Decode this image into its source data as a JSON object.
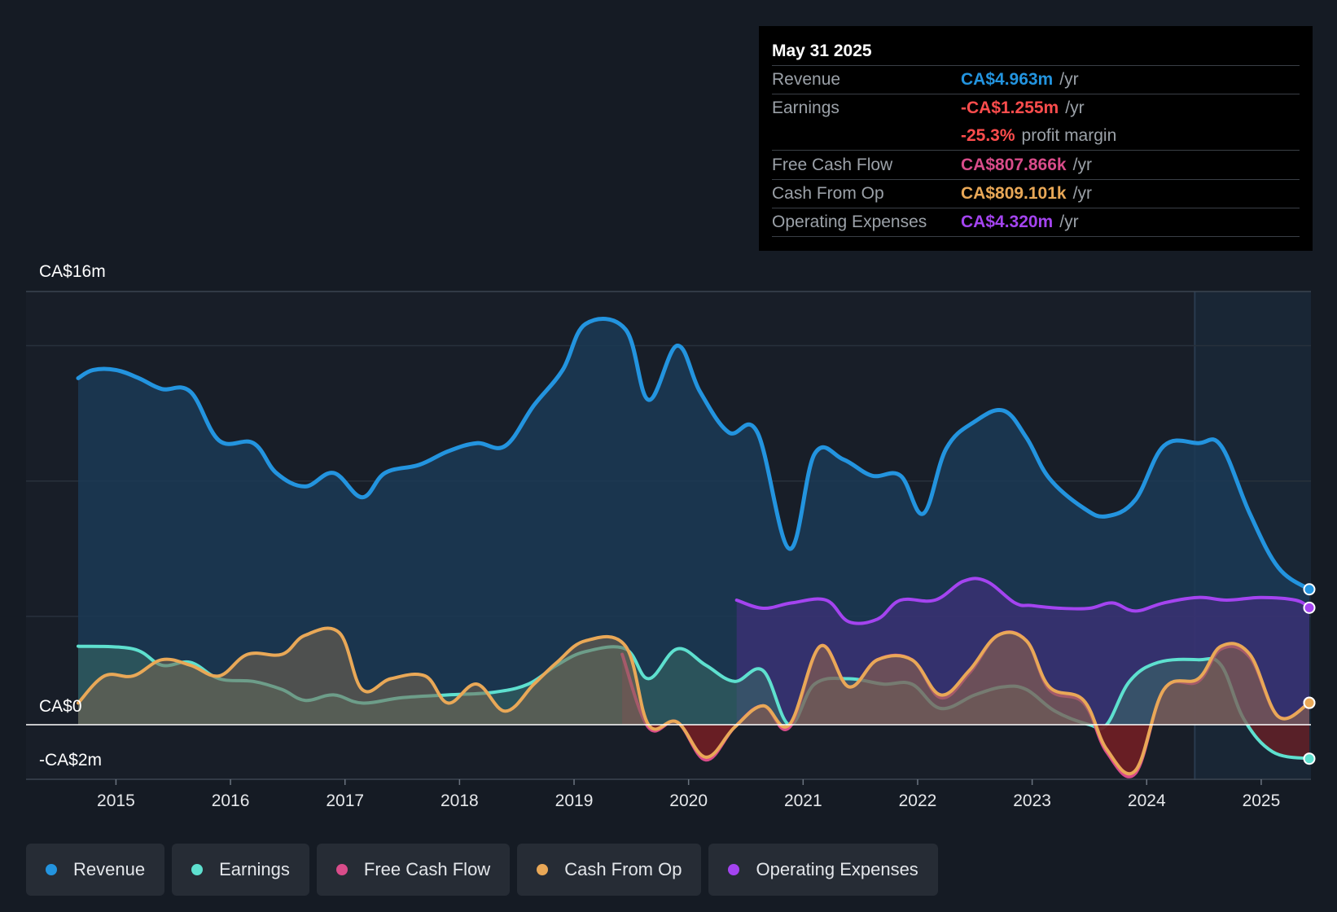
{
  "tooltip": {
    "date": "May 31 2025",
    "revenue": {
      "label": "Revenue",
      "value": "CA$4.963m",
      "unit": "/yr"
    },
    "earnings": {
      "label": "Earnings",
      "value": "-CA$1.255m",
      "unit": "/yr"
    },
    "margin": {
      "value": "-25.3%",
      "unit": "profit margin"
    },
    "fcf": {
      "label": "Free Cash Flow",
      "value": "CA$807.866k",
      "unit": "/yr"
    },
    "cfo": {
      "label": "Cash From Op",
      "value": "CA$809.101k",
      "unit": "/yr"
    },
    "opex": {
      "label": "Operating Expenses",
      "value": "CA$4.320m",
      "unit": "/yr"
    }
  },
  "colors": {
    "revenue": "#2394df",
    "earnings": "#5ee0cf",
    "fcf": "#d94c8a",
    "cfo": "#e9a857",
    "opex": "#a444f0",
    "negative": "#ff4d4d"
  },
  "legend": [
    "Revenue",
    "Earnings",
    "Free Cash Flow",
    "Cash From Op",
    "Operating Expenses"
  ],
  "chart_data": {
    "type": "area",
    "unit": "CA$ millions",
    "ylim": [
      -2,
      16
    ],
    "y_tick_labels": [
      "CA$16m",
      "CA$0",
      "-CA$2m"
    ],
    "x_tick_labels": [
      "2015",
      "2016",
      "2017",
      "2018",
      "2019",
      "2020",
      "2021",
      "2022",
      "2023",
      "2024",
      "2025"
    ],
    "x_range": [
      2014.67,
      2025.42
    ],
    "forecast_start": 2024.42,
    "series": [
      {
        "name": "Revenue",
        "key": "revenue",
        "x": [
          2014.67,
          2014.8,
          2015.0,
          2015.2,
          2015.4,
          2015.65,
          2015.9,
          2016.2,
          2016.4,
          2016.65,
          2016.9,
          2017.15,
          2017.35,
          2017.65,
          2017.9,
          2018.15,
          2018.4,
          2018.65,
          2018.9,
          2019.1,
          2019.45,
          2019.65,
          2019.9,
          2020.1,
          2020.35,
          2020.6,
          2020.88,
          2021.1,
          2021.35,
          2021.6,
          2021.85,
          2022.05,
          2022.25,
          2022.5,
          2022.75,
          2022.95,
          2023.15,
          2023.45,
          2023.65,
          2023.9,
          2024.15,
          2024.45,
          2024.65,
          2024.9,
          2025.15,
          2025.42
        ],
        "values": [
          12.8,
          13.1,
          13.1,
          12.8,
          12.4,
          12.3,
          10.5,
          10.4,
          9.3,
          8.8,
          9.3,
          8.4,
          9.3,
          9.6,
          10.1,
          10.4,
          10.3,
          11.8,
          13.1,
          14.8,
          14.6,
          12.0,
          14.0,
          12.3,
          10.8,
          10.8,
          6.5,
          10.0,
          9.8,
          9.2,
          9.2,
          7.8,
          10.2,
          11.2,
          11.6,
          10.6,
          9.1,
          8.0,
          7.7,
          8.3,
          10.3,
          10.4,
          10.3,
          7.8,
          5.8,
          5.0
        ]
      },
      {
        "name": "Earnings",
        "key": "earnings",
        "x": [
          2014.67,
          2015.15,
          2015.4,
          2015.65,
          2015.9,
          2016.2,
          2016.45,
          2016.65,
          2016.9,
          2017.15,
          2017.5,
          2017.9,
          2018.3,
          2018.6,
          2018.85,
          2019.1,
          2019.45,
          2019.65,
          2019.9,
          2020.15,
          2020.4,
          2020.65,
          2020.88,
          2021.1,
          2021.4,
          2021.7,
          2021.95,
          2022.2,
          2022.5,
          2022.75,
          2022.95,
          2023.2,
          2023.5,
          2023.65,
          2023.85,
          2024.1,
          2024.45,
          2024.65,
          2024.85,
          2025.1,
          2025.42
        ],
        "values": [
          2.9,
          2.8,
          2.2,
          2.3,
          1.7,
          1.6,
          1.3,
          0.9,
          1.1,
          0.8,
          1.0,
          1.1,
          1.2,
          1.5,
          2.2,
          2.7,
          2.8,
          1.7,
          2.8,
          2.2,
          1.6,
          2.0,
          0.0,
          1.5,
          1.7,
          1.5,
          1.5,
          0.6,
          1.1,
          1.4,
          1.3,
          0.5,
          0.0,
          0.0,
          1.6,
          2.3,
          2.4,
          2.2,
          0.2,
          -1.0,
          -1.255
        ]
      },
      {
        "name": "Free Cash Flow",
        "key": "fcf",
        "x": [
          2019.42,
          2019.65,
          2019.9,
          2020.15,
          2020.4,
          2020.65,
          2020.88,
          2021.15,
          2021.4,
          2021.65,
          2021.95,
          2022.2,
          2022.45,
          2022.7,
          2022.95,
          2023.15,
          2023.45,
          2023.65,
          2023.9,
          2024.15,
          2024.45,
          2024.65,
          2024.9,
          2025.15,
          2025.42
        ],
        "values": [
          2.6,
          -0.1,
          0.1,
          -1.3,
          -0.1,
          0.7,
          -0.1,
          2.9,
          1.4,
          2.4,
          2.4,
          1.0,
          1.9,
          3.3,
          3.1,
          1.3,
          0.8,
          -1.0,
          -1.8,
          1.3,
          1.6,
          2.8,
          2.5,
          0.3,
          0.807866
        ]
      },
      {
        "name": "Cash From Op",
        "key": "cfo",
        "x": [
          2014.67,
          2014.9,
          2015.15,
          2015.4,
          2015.65,
          2015.9,
          2016.15,
          2016.45,
          2016.65,
          2016.95,
          2017.15,
          2017.4,
          2017.7,
          2017.9,
          2018.15,
          2018.4,
          2018.65,
          2018.85,
          2019.1,
          2019.45,
          2019.65,
          2019.9,
          2020.15,
          2020.4,
          2020.65,
          2020.88,
          2021.15,
          2021.4,
          2021.65,
          2021.95,
          2022.2,
          2022.45,
          2022.7,
          2022.95,
          2023.15,
          2023.45,
          2023.65,
          2023.9,
          2024.15,
          2024.45,
          2024.65,
          2024.9,
          2025.15,
          2025.42
        ],
        "values": [
          0.8,
          1.8,
          1.8,
          2.4,
          2.2,
          1.8,
          2.6,
          2.6,
          3.3,
          3.4,
          1.3,
          1.7,
          1.8,
          0.8,
          1.5,
          0.5,
          1.5,
          2.3,
          3.1,
          2.9,
          0.0,
          0.1,
          -1.2,
          -0.1,
          0.7,
          0.0,
          2.9,
          1.4,
          2.4,
          2.4,
          1.1,
          2.0,
          3.3,
          3.1,
          1.4,
          0.9,
          -0.9,
          -1.7,
          1.3,
          1.7,
          2.9,
          2.6,
          0.3,
          0.809101
        ]
      },
      {
        "name": "Operating Expenses",
        "key": "opex",
        "x": [
          2020.42,
          2020.65,
          2020.9,
          2021.2,
          2021.4,
          2021.65,
          2021.85,
          2022.15,
          2022.4,
          2022.6,
          2022.85,
          2023.0,
          2023.25,
          2023.5,
          2023.7,
          2023.9,
          2024.15,
          2024.45,
          2024.7,
          2025.0,
          2025.3,
          2025.42
        ],
        "values": [
          4.6,
          4.3,
          4.5,
          4.6,
          3.8,
          3.9,
          4.6,
          4.6,
          5.3,
          5.3,
          4.5,
          4.4,
          4.3,
          4.3,
          4.5,
          4.2,
          4.5,
          4.7,
          4.6,
          4.7,
          4.6,
          4.32
        ]
      }
    ]
  }
}
